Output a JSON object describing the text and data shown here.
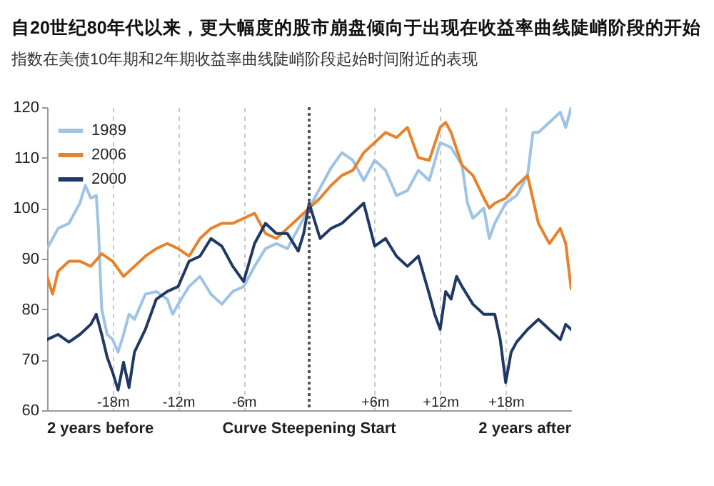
{
  "chart_data": {
    "type": "line",
    "title": "自20世纪80年代以来，更大幅度的股市崩盘倾向于出现在收益率曲线陡峭阶段的开始",
    "subtitle": "指数在美债10年期和2年期收益率曲线陡峭阶段起始时间附近的表现",
    "xlim": [
      -24,
      24
    ],
    "xticks": [
      {
        "value": -18,
        "label": "-18m"
      },
      {
        "value": -12,
        "label": "-12m"
      },
      {
        "value": -6,
        "label": "-6m"
      },
      {
        "value": 6,
        "label": "+6m"
      },
      {
        "value": 12,
        "label": "+12m"
      },
      {
        "value": 18,
        "label": "+18m"
      }
    ],
    "annotations": [
      "2 years before",
      "Curve Steepening Start",
      "2 years after"
    ],
    "ylim": [
      60,
      120
    ],
    "yticks": [
      60,
      70,
      80,
      90,
      100,
      110,
      120
    ],
    "grid": "x",
    "legend": "top left",
    "ref_lines": [
      {
        "axis": "x",
        "value": 0,
        "color": "#555555",
        "line_style": "dotted"
      }
    ],
    "series": [
      {
        "name": "1989",
        "color": "#9dc3e6",
        "x": [
          -24,
          -23,
          -22,
          -21,
          -20.5,
          -20,
          -19.5,
          -19.3,
          -19,
          -18.5,
          -18,
          -17.5,
          -17,
          -16.5,
          -16,
          -15,
          -14,
          -13,
          -12.5,
          -12,
          -11,
          -10,
          -9,
          -8,
          -7,
          -6,
          -5,
          -4,
          -3,
          -2,
          -1,
          0,
          1,
          2,
          3,
          4,
          5,
          6,
          7,
          8,
          9,
          10,
          11,
          12,
          13,
          14,
          14.5,
          15,
          16,
          16.5,
          17,
          18,
          19,
          20,
          20.5,
          21,
          22,
          23,
          23.5,
          24
        ],
        "values": [
          92,
          96,
          97,
          101,
          104.5,
          102,
          102.5,
          96,
          80,
          75,
          74,
          71.5,
          75,
          79,
          78,
          83,
          83.5,
          82,
          79,
          81,
          84.5,
          86.5,
          83,
          81,
          83.5,
          84.5,
          88.5,
          92,
          93,
          92,
          96,
          100,
          104,
          108,
          111,
          109.5,
          105.5,
          109.5,
          107.5,
          102.5,
          103.5,
          107.5,
          105.5,
          113,
          112,
          108.5,
          101,
          98,
          100,
          94,
          97,
          101,
          102.5,
          106.5,
          115,
          115,
          117,
          119,
          116,
          120
        ]
      },
      {
        "name": "2006",
        "color": "#e8822a",
        "x": [
          -24,
          -23.5,
          -23,
          -22,
          -21,
          -20,
          -19,
          -18,
          -17,
          -16,
          -15,
          -14,
          -13,
          -12,
          -11,
          -10,
          -9,
          -8,
          -7,
          -6,
          -5,
          -4,
          -3,
          -2,
          -1,
          0,
          1,
          2,
          3,
          4,
          5,
          6,
          7,
          8,
          9,
          10,
          11,
          12,
          12.5,
          13,
          14,
          15,
          16,
          16.5,
          17,
          18,
          19,
          20,
          21,
          22,
          23,
          23.5,
          24
        ],
        "values": [
          86.5,
          83,
          87.5,
          89.5,
          89.5,
          88.5,
          91,
          89.5,
          86.5,
          88.5,
          90.5,
          92,
          93,
          92,
          90.5,
          94,
          96,
          97,
          97,
          98,
          99,
          95,
          94,
          96,
          98,
          100,
          102,
          104.5,
          106.5,
          107.5,
          111,
          113,
          115,
          114,
          116,
          110,
          109.5,
          116,
          117,
          115,
          108.5,
          106.5,
          102,
          100,
          101,
          102,
          104.5,
          106.5,
          97,
          93,
          96,
          93,
          84
        ]
      },
      {
        "name": "2000",
        "color": "#1f3864",
        "x": [
          -24,
          -23,
          -22,
          -21,
          -20,
          -19.5,
          -19,
          -18.5,
          -18,
          -17.5,
          -17,
          -16.5,
          -16,
          -15,
          -14,
          -13,
          -12,
          -11,
          -10,
          -9,
          -8,
          -7,
          -6,
          -5,
          -4,
          -3,
          -2,
          -1,
          -0.5,
          0,
          1,
          2,
          3,
          4,
          5,
          6,
          7,
          8,
          9,
          10,
          11,
          11.5,
          12,
          12.5,
          13,
          13.5,
          14,
          15,
          16,
          17,
          17.5,
          18,
          18.5,
          19,
          20,
          21,
          22,
          23,
          23.5,
          24
        ],
        "values": [
          74,
          75,
          73.5,
          75,
          77,
          79,
          75,
          70.5,
          67.5,
          64,
          69.5,
          64.5,
          71.5,
          76,
          82,
          83.5,
          84.5,
          89.5,
          90.5,
          94,
          92.5,
          88.5,
          85.5,
          93,
          97,
          95,
          95,
          91.5,
          95,
          101,
          94,
          96,
          97,
          99,
          101,
          92.5,
          94,
          90.5,
          88.5,
          90.5,
          83,
          79,
          76,
          83.5,
          82,
          86.5,
          84.5,
          81,
          79,
          79,
          74,
          65.5,
          71.5,
          73.5,
          76,
          78,
          76,
          74,
          77,
          76
        ]
      }
    ]
  }
}
